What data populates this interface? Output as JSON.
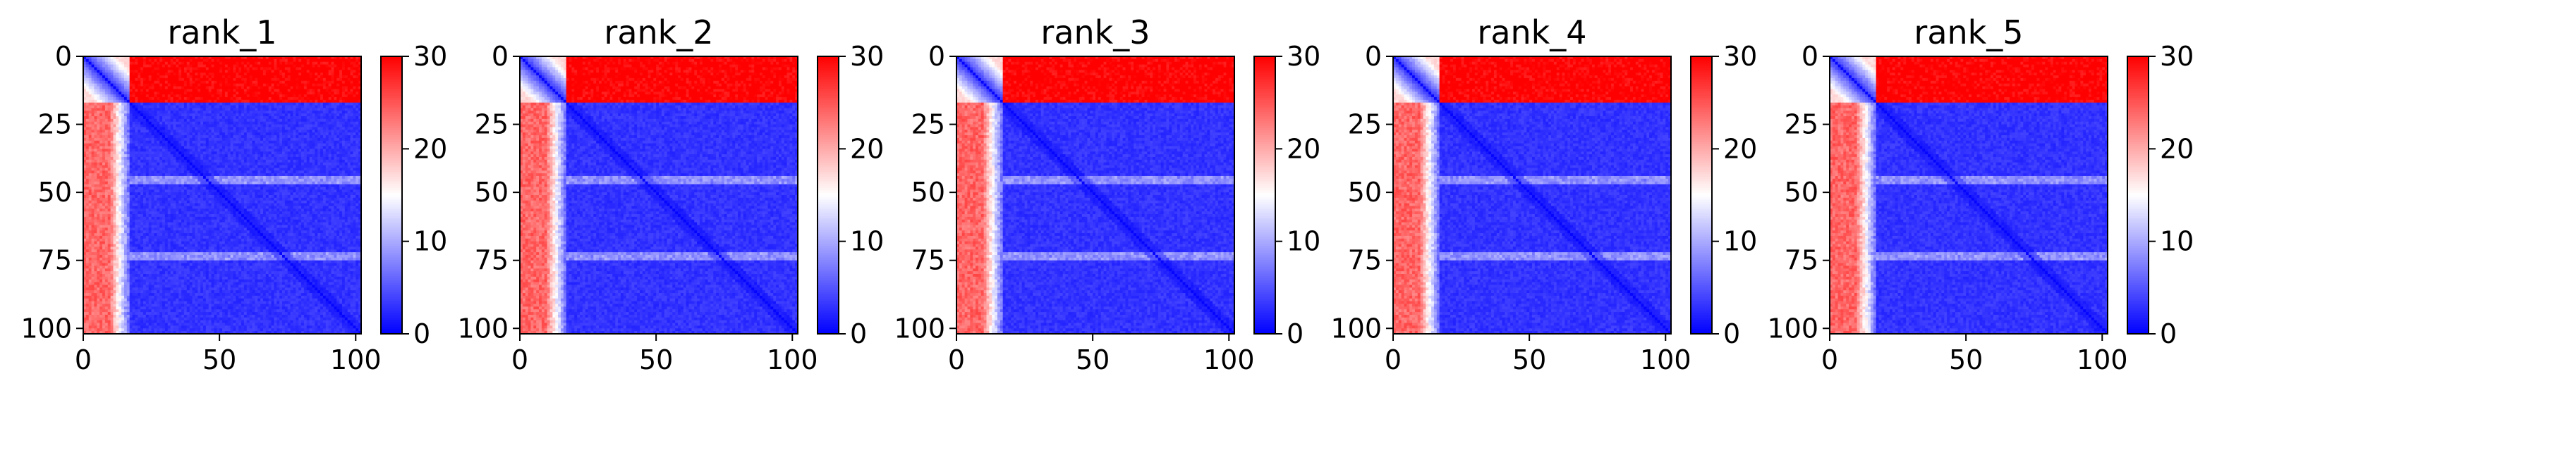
{
  "chart_data": [
    {
      "type": "heatmap",
      "title": "rank_1",
      "xlabel": "",
      "ylabel": "",
      "xlim": [
        0,
        102
      ],
      "ylim": [
        102,
        0
      ],
      "x_ticks": [
        0,
        50,
        100
      ],
      "y_ticks": [
        0,
        25,
        50,
        75,
        100
      ],
      "colorbar": {
        "min": 0,
        "max": 30,
        "ticks": [
          0,
          10,
          20,
          30
        ],
        "colormap": "bwr"
      },
      "features": {
        "n_residues": 102,
        "flexible_n_terminus": [
          0,
          17
        ],
        "terminus_vs_core_distance": 30,
        "core_distance": 2,
        "secondary_bands": [
          45,
          73
        ]
      }
    },
    {
      "type": "heatmap",
      "title": "rank_2",
      "xlabel": "",
      "ylabel": "",
      "xlim": [
        0,
        102
      ],
      "ylim": [
        102,
        0
      ],
      "x_ticks": [
        0,
        50,
        100
      ],
      "y_ticks": [
        0,
        25,
        50,
        75,
        100
      ],
      "colorbar": {
        "min": 0,
        "max": 30,
        "ticks": [
          0,
          10,
          20,
          30
        ],
        "colormap": "bwr"
      },
      "features": {
        "n_residues": 102,
        "flexible_n_terminus": [
          0,
          17
        ],
        "terminus_vs_core_distance": 30,
        "core_distance": 2,
        "secondary_bands": [
          45,
          73
        ]
      }
    },
    {
      "type": "heatmap",
      "title": "rank_3",
      "xlabel": "",
      "ylabel": "",
      "xlim": [
        0,
        102
      ],
      "ylim": [
        102,
        0
      ],
      "x_ticks": [
        0,
        50,
        100
      ],
      "y_ticks": [
        0,
        25,
        50,
        75,
        100
      ],
      "colorbar": {
        "min": 0,
        "max": 30,
        "ticks": [
          0,
          10,
          20,
          30
        ],
        "colormap": "bwr"
      },
      "features": {
        "n_residues": 102,
        "flexible_n_terminus": [
          0,
          17
        ],
        "terminus_vs_core_distance": 30,
        "core_distance": 2,
        "secondary_bands": [
          45,
          73
        ]
      }
    },
    {
      "type": "heatmap",
      "title": "rank_4",
      "xlabel": "",
      "ylabel": "",
      "xlim": [
        0,
        102
      ],
      "ylim": [
        102,
        0
      ],
      "x_ticks": [
        0,
        50,
        100
      ],
      "y_ticks": [
        0,
        25,
        50,
        75,
        100
      ],
      "colorbar": {
        "min": 0,
        "max": 30,
        "ticks": [
          0,
          10,
          20,
          30
        ],
        "colormap": "bwr"
      },
      "features": {
        "n_residues": 102,
        "flexible_n_terminus": [
          0,
          17
        ],
        "terminus_vs_core_distance": 30,
        "core_distance": 2,
        "secondary_bands": [
          45,
          73
        ]
      }
    },
    {
      "type": "heatmap",
      "title": "rank_5",
      "xlabel": "",
      "ylabel": "",
      "xlim": [
        0,
        102
      ],
      "ylim": [
        102,
        0
      ],
      "x_ticks": [
        0,
        50,
        100
      ],
      "y_ticks": [
        0,
        25,
        50,
        75,
        100
      ],
      "colorbar": {
        "min": 0,
        "max": 30,
        "ticks": [
          0,
          10,
          20,
          30
        ],
        "colormap": "bwr"
      },
      "features": {
        "n_residues": 102,
        "flexible_n_terminus": [
          0,
          17
        ],
        "terminus_vs_core_distance": 30,
        "core_distance": 2,
        "secondary_bands": [
          45,
          73
        ]
      }
    }
  ]
}
